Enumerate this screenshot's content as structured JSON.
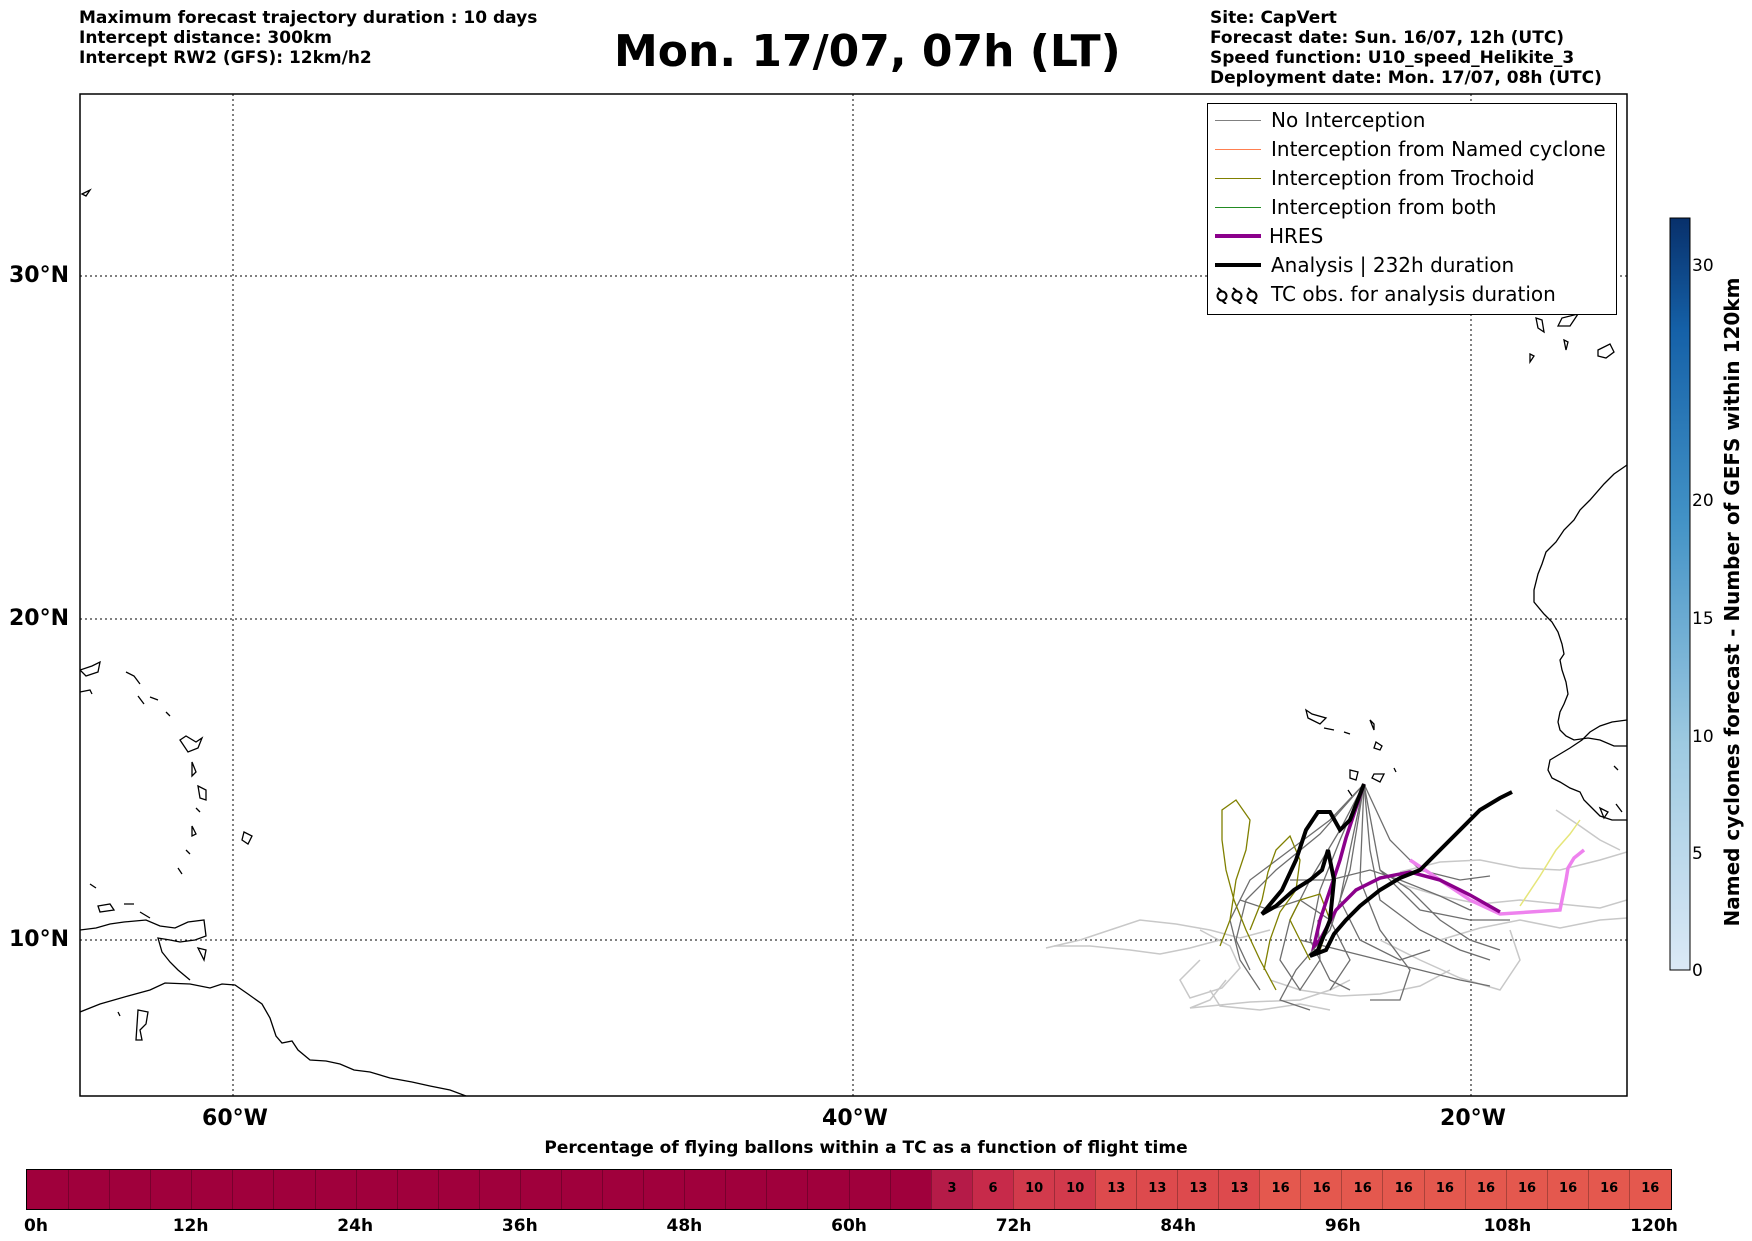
{
  "header_left": [
    "Maximum forecast trajectory duration : 10 days",
    "Intercept distance: 300km",
    "Intercept RW2 (GFS):  12km/h2"
  ],
  "title": "Mon. 17/07, 07h (LT)",
  "header_right": [
    "Site: CapVert",
    "Forecast date: Sun. 16/07, 12h (UTC)",
    "Speed function: U10_speed_Helikite_3",
    "Deployment date: Mon. 17/07, 08h (UTC)"
  ],
  "map": {
    "lat_labels": [
      "30°N",
      "20°N",
      "10°N"
    ],
    "lon_labels": [
      "60°W",
      "40°W",
      "20°W"
    ],
    "grid": true
  },
  "legend": [
    {
      "label": "No Interception",
      "color": "#808080"
    },
    {
      "label": "Interception from Named cyclone",
      "color": "#ff7f50"
    },
    {
      "label": "Interception from Trochoid",
      "color": "#808000"
    },
    {
      "label": "Interception from both",
      "color": "#228b22"
    },
    {
      "label": "HRES",
      "color": "#8b008b"
    },
    {
      "label": "Analysis | 232h duration",
      "color": "#000000"
    },
    {
      "label": "TC obs. for analysis duration",
      "color": "#000000",
      "icon": "tc-symbol-icon"
    }
  ],
  "colorbar": {
    "title": "Named cyclones forecast - Number of GEFS within 120km",
    "ticks": [
      "30",
      "20",
      "15",
      "10",
      "5",
      "0"
    ],
    "min": 0,
    "max": 32,
    "color_low": "#dbe9f6",
    "color_high": "#08306b"
  },
  "strip": {
    "title": "Percentage of flying ballons within a TC as a function of flight time",
    "tick_labels": [
      "0h",
      "12h",
      "24h",
      "36h",
      "48h",
      "60h",
      "72h",
      "84h",
      "96h",
      "108h",
      "120h"
    ],
    "hours_per_cell": 3,
    "values": [
      0,
      0,
      0,
      0,
      0,
      0,
      0,
      0,
      0,
      0,
      0,
      0,
      0,
      0,
      0,
      0,
      0,
      0,
      0,
      0,
      0,
      0,
      3,
      6,
      10,
      10,
      13,
      13,
      13,
      13,
      16,
      16,
      16,
      16,
      16,
      16,
      16,
      16,
      16,
      16
    ],
    "color_zero": "#a0003c"
  }
}
